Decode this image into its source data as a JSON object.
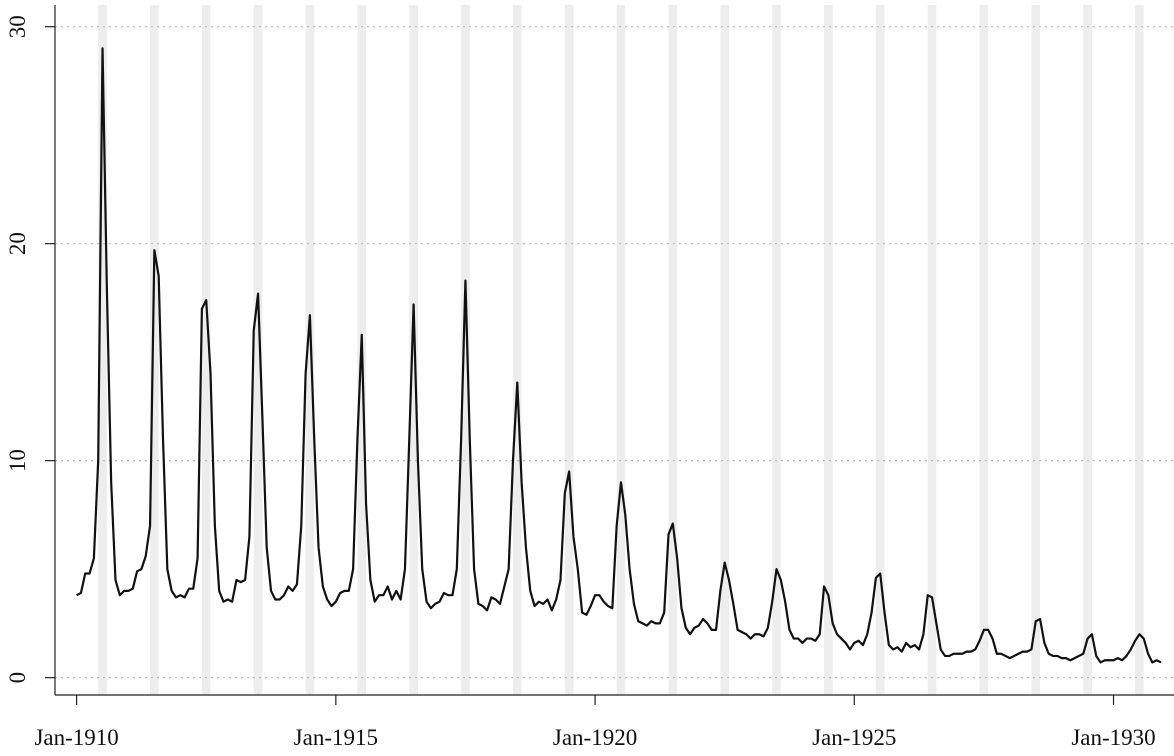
{
  "chart_data": {
    "type": "line",
    "x": [
      "1910-01",
      "1910-02",
      "1910-03",
      "1910-04",
      "1910-05",
      "1910-06",
      "1910-07",
      "1910-08",
      "1910-09",
      "1910-10",
      "1910-11",
      "1910-12",
      "1911-01",
      "1911-02",
      "1911-03",
      "1911-04",
      "1911-05",
      "1911-06",
      "1911-07",
      "1911-08",
      "1911-09",
      "1911-10",
      "1911-11",
      "1911-12",
      "1912-01",
      "1912-02",
      "1912-03",
      "1912-04",
      "1912-05",
      "1912-06",
      "1912-07",
      "1912-08",
      "1912-09",
      "1912-10",
      "1912-11",
      "1912-12",
      "1913-01",
      "1913-02",
      "1913-03",
      "1913-04",
      "1913-05",
      "1913-06",
      "1913-07",
      "1913-08",
      "1913-09",
      "1913-10",
      "1913-11",
      "1913-12",
      "1914-01",
      "1914-02",
      "1914-03",
      "1914-04",
      "1914-05",
      "1914-06",
      "1914-07",
      "1914-08",
      "1914-09",
      "1914-10",
      "1914-11",
      "1914-12",
      "1915-01",
      "1915-02",
      "1915-03",
      "1915-04",
      "1915-05",
      "1915-06",
      "1915-07",
      "1915-08",
      "1915-09",
      "1915-10",
      "1915-11",
      "1915-12",
      "1916-01",
      "1916-02",
      "1916-03",
      "1916-04",
      "1916-05",
      "1916-06",
      "1916-07",
      "1916-08",
      "1916-09",
      "1916-10",
      "1916-11",
      "1916-12",
      "1917-01",
      "1917-02",
      "1917-03",
      "1917-04",
      "1917-05",
      "1917-06",
      "1917-07",
      "1917-08",
      "1917-09",
      "1917-10",
      "1917-11",
      "1917-12",
      "1918-01",
      "1918-02",
      "1918-03",
      "1918-04",
      "1918-05",
      "1918-06",
      "1918-07",
      "1918-08",
      "1918-09",
      "1918-10",
      "1918-11",
      "1918-12",
      "1919-01",
      "1919-02",
      "1919-03",
      "1919-04",
      "1919-05",
      "1919-06",
      "1919-07",
      "1919-08",
      "1919-09",
      "1919-10",
      "1919-11",
      "1919-12",
      "1920-01",
      "1920-02",
      "1920-03",
      "1920-04",
      "1920-05",
      "1920-06",
      "1920-07",
      "1920-08",
      "1920-09",
      "1920-10",
      "1920-11",
      "1920-12",
      "1921-01",
      "1921-02",
      "1921-03",
      "1921-04",
      "1921-05",
      "1921-06",
      "1921-07",
      "1921-08",
      "1921-09",
      "1921-10",
      "1921-11",
      "1921-12",
      "1922-01",
      "1922-02",
      "1922-03",
      "1922-04",
      "1922-05",
      "1922-06",
      "1922-07",
      "1922-08",
      "1922-09",
      "1922-10",
      "1922-11",
      "1922-12",
      "1923-01",
      "1923-02",
      "1923-03",
      "1923-04",
      "1923-05",
      "1923-06",
      "1923-07",
      "1923-08",
      "1923-09",
      "1923-10",
      "1923-11",
      "1923-12",
      "1924-01",
      "1924-02",
      "1924-03",
      "1924-04",
      "1924-05",
      "1924-06",
      "1924-07",
      "1924-08",
      "1924-09",
      "1924-10",
      "1924-11",
      "1924-12",
      "1925-01",
      "1925-02",
      "1925-03",
      "1925-04",
      "1925-05",
      "1925-06",
      "1925-07",
      "1925-08",
      "1925-09",
      "1925-10",
      "1925-11",
      "1925-12",
      "1926-01",
      "1926-02",
      "1926-03",
      "1926-04",
      "1926-05",
      "1926-06",
      "1926-07",
      "1926-08",
      "1926-09",
      "1926-10",
      "1926-11",
      "1926-12",
      "1927-01",
      "1927-02",
      "1927-03",
      "1927-04",
      "1927-05",
      "1927-06",
      "1927-07",
      "1927-08",
      "1927-09",
      "1927-10",
      "1927-11",
      "1927-12",
      "1928-01",
      "1928-02",
      "1928-03",
      "1928-04",
      "1928-05",
      "1928-06",
      "1928-07",
      "1928-08",
      "1928-09",
      "1928-10",
      "1928-11",
      "1928-12",
      "1929-01",
      "1929-02",
      "1929-03",
      "1929-04",
      "1929-05",
      "1929-06",
      "1929-07",
      "1929-08",
      "1929-09",
      "1929-10",
      "1929-11",
      "1929-12",
      "1930-01",
      "1930-02",
      "1930-03",
      "1930-04",
      "1930-05",
      "1930-06",
      "1930-07",
      "1930-08",
      "1930-09",
      "1930-10",
      "1930-11",
      "1930-12"
    ],
    "values": [
      3.8,
      3.9,
      4.8,
      4.8,
      5.5,
      10,
      29,
      18,
      9,
      4.5,
      3.8,
      4.0,
      4.0,
      4.1,
      4.9,
      5.0,
      5.6,
      7,
      19.7,
      18.5,
      11,
      5,
      4.0,
      3.7,
      3.8,
      3.7,
      4.1,
      4.1,
      5.5,
      17.0,
      17.4,
      14,
      7,
      4.0,
      3.5,
      3.6,
      3.5,
      4.5,
      4.4,
      4.5,
      6.5,
      16,
      17.7,
      12,
      6,
      4.0,
      3.6,
      3.6,
      3.8,
      4.2,
      4.0,
      4.3,
      7,
      14,
      16.7,
      11,
      6,
      4.2,
      3.6,
      3.3,
      3.5,
      3.9,
      4.0,
      4.0,
      5,
      11,
      15.8,
      8,
      4.5,
      3.5,
      3.8,
      3.8,
      4.2,
      3.6,
      4.0,
      3.6,
      5,
      11,
      17.2,
      10,
      5,
      3.5,
      3.2,
      3.4,
      3.5,
      3.9,
      3.8,
      3.8,
      5,
      11,
      18.3,
      11,
      5,
      3.4,
      3.3,
      3.1,
      3.7,
      3.6,
      3.4,
      4.2,
      5,
      10,
      13.6,
      9,
      6,
      4.0,
      3.3,
      3.5,
      3.4,
      3.6,
      3.1,
      3.6,
      4.5,
      8.5,
      9.5,
      6.5,
      5,
      3.0,
      2.9,
      3.3,
      3.8,
      3.8,
      3.5,
      3.3,
      3.2,
      7,
      9.0,
      7.5,
      5,
      3.4,
      2.6,
      2.5,
      2.4,
      2.6,
      2.5,
      2.5,
      3,
      6.6,
      7.1,
      5.5,
      3.2,
      2.3,
      2.0,
      2.3,
      2.4,
      2.7,
      2.5,
      2.2,
      2.2,
      4,
      5.3,
      4.5,
      3.4,
      2.2,
      2.1,
      2.0,
      1.8,
      2.0,
      2.0,
      1.9,
      2.3,
      3.5,
      5.0,
      4.5,
      3.5,
      2.2,
      1.8,
      1.8,
      1.6,
      1.8,
      1.8,
      1.7,
      2.0,
      4.2,
      3.8,
      2.5,
      2.0,
      1.8,
      1.6,
      1.3,
      1.6,
      1.7,
      1.5,
      2.0,
      3.0,
      4.6,
      4.8,
      3.0,
      1.5,
      1.3,
      1.4,
      1.2,
      1.6,
      1.4,
      1.5,
      1.3,
      2.0,
      3.8,
      3.7,
      2.5,
      1.3,
      1.0,
      1.0,
      1.1,
      1.1,
      1.1,
      1.2,
      1.2,
      1.3,
      1.7,
      2.2,
      2.2,
      1.8,
      1.1,
      1.1,
      1.0,
      0.9,
      1.0,
      1.1,
      1.2,
      1.2,
      1.3,
      2.6,
      2.7,
      1.6,
      1.1,
      1.0,
      1.0,
      0.9,
      0.9,
      0.8,
      0.9,
      1.0,
      1.1,
      1.8,
      2.0,
      1.0,
      0.7,
      0.8,
      0.8,
      0.8,
      0.9,
      0.8,
      1.0,
      1.3,
      1.7,
      2.0,
      1.8,
      1.1,
      0.7,
      0.8,
      0.7
    ],
    "color": "#111111",
    "bands": [
      [
        "1910-06",
        "1910-08"
      ],
      [
        "1911-06",
        "1911-08"
      ],
      [
        "1912-06",
        "1912-08"
      ],
      [
        "1913-06",
        "1913-08"
      ],
      [
        "1914-06",
        "1914-08"
      ],
      [
        "1915-06",
        "1915-08"
      ],
      [
        "1916-06",
        "1916-08"
      ],
      [
        "1917-06",
        "1917-08"
      ],
      [
        "1918-06",
        "1918-08"
      ],
      [
        "1919-06",
        "1919-08"
      ],
      [
        "1920-06",
        "1920-08"
      ],
      [
        "1921-06",
        "1921-08"
      ],
      [
        "1922-06",
        "1922-08"
      ],
      [
        "1923-06",
        "1923-08"
      ],
      [
        "1924-06",
        "1924-08"
      ],
      [
        "1925-06",
        "1925-08"
      ],
      [
        "1926-06",
        "1926-08"
      ],
      [
        "1927-06",
        "1927-08"
      ],
      [
        "1928-06",
        "1928-08"
      ],
      [
        "1929-06",
        "1929-08"
      ],
      [
        "1930-06",
        "1930-08"
      ]
    ],
    "band_color": "#ededed",
    "xlim": [
      "1909-08",
      "1931-03"
    ],
    "xticks": [
      {
        "value": "1910-01",
        "label": "Jan-1910"
      },
      {
        "value": "1915-01",
        "label": "Jan-1915"
      },
      {
        "value": "1920-01",
        "label": "Jan-1920"
      },
      {
        "value": "1925-01",
        "label": "Jan-1925"
      },
      {
        "value": "1930-01",
        "label": "Jan-1930"
      }
    ],
    "ylim": [
      -0.8,
      31
    ],
    "yticks": [
      0,
      10,
      20,
      30
    ],
    "grid": true
  }
}
